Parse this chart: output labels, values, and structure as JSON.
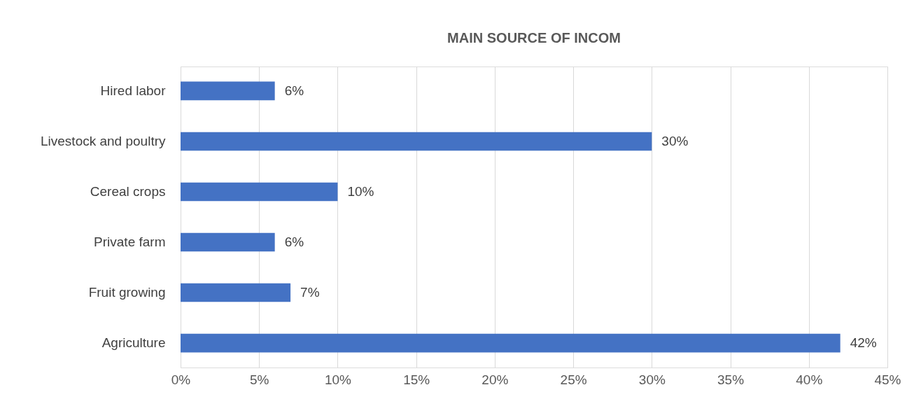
{
  "chart_data": {
    "type": "bar",
    "orientation": "horizontal",
    "title": "MAIN SOURCE OF INCOM",
    "categories": [
      "Hired labor",
      "Livestock and poultry",
      "Cereal crops",
      "Private farm",
      "Fruit growing",
      "Agriculture"
    ],
    "values": [
      6,
      30,
      10,
      6,
      7,
      42
    ],
    "color": "#4472c4",
    "value_labels": [
      "6%",
      "30%",
      "10%",
      "6%",
      "7%",
      "42%"
    ],
    "xlim": [
      0,
      45
    ],
    "xticks": [
      {
        "value": 0,
        "label": "0%"
      },
      {
        "value": 5,
        "label": "5%"
      },
      {
        "value": 10,
        "label": "10%"
      },
      {
        "value": 15,
        "label": "15%"
      },
      {
        "value": 20,
        "label": "20%"
      },
      {
        "value": 25,
        "label": "25%"
      },
      {
        "value": 30,
        "label": "30%"
      },
      {
        "value": 35,
        "label": "35%"
      },
      {
        "value": 40,
        "label": "40%"
      },
      {
        "value": 45,
        "label": "45%"
      }
    ],
    "grid": "x"
  }
}
